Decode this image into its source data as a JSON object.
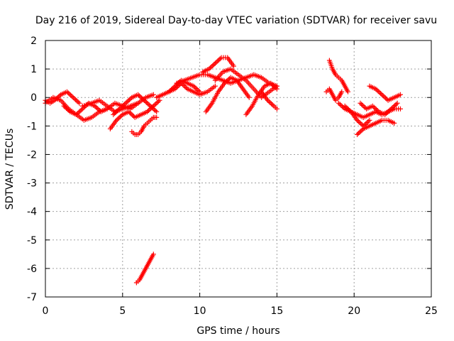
{
  "chart_data": {
    "type": "scatter",
    "title": "Day 216 of 2019, Sidereal Day-to-day VTEC variation (SDTVAR) for receiver savu",
    "xlabel": "GPS time / hours",
    "ylabel": "SDTVAR / TECUs",
    "xlim": [
      0,
      25
    ],
    "ylim": [
      -7,
      2
    ],
    "xticks": [
      0,
      5,
      10,
      15,
      20,
      25
    ],
    "yticks": [
      -7,
      -6,
      -5,
      -4,
      -3,
      -2,
      -1,
      0,
      1,
      2
    ],
    "grid": true,
    "marker": "+",
    "color": "#ff0000",
    "segments": [
      {
        "x": [
          0.0,
          0.3,
          0.6,
          1.0,
          1.4,
          1.8,
          2.2
        ],
        "y": [
          -0.1,
          -0.2,
          -0.1,
          0.1,
          0.2,
          0.0,
          -0.2
        ]
      },
      {
        "x": [
          0.0,
          0.5,
          1.0,
          1.5,
          2.0,
          2.5,
          3.0,
          3.5,
          4.0
        ],
        "y": [
          -0.2,
          0.0,
          -0.1,
          -0.4,
          -0.6,
          -0.8,
          -0.7,
          -0.5,
          -0.4
        ]
      },
      {
        "x": [
          1.2,
          1.6,
          2.0,
          2.4,
          2.8,
          3.2,
          3.6,
          4.0,
          4.5,
          5.0,
          5.5,
          6.0
        ],
        "y": [
          -0.3,
          -0.5,
          -0.6,
          -0.4,
          -0.2,
          -0.3,
          -0.5,
          -0.4,
          -0.2,
          -0.3,
          -0.4,
          -0.2
        ]
      },
      {
        "x": [
          2.4,
          3.0,
          3.5,
          4.0,
          4.5,
          5.0,
          5.5,
          6.0,
          6.5,
          7.0
        ],
        "y": [
          -0.3,
          -0.2,
          -0.1,
          -0.3,
          -0.5,
          -0.4,
          -0.3,
          -0.2,
          0.0,
          0.1
        ]
      },
      {
        "x": [
          4.2,
          4.6,
          5.0,
          5.4,
          5.8,
          6.2,
          6.6,
          7.0,
          7.4
        ],
        "y": [
          -1.1,
          -0.8,
          -0.6,
          -0.5,
          -0.7,
          -0.6,
          -0.5,
          -0.3,
          -0.1
        ]
      },
      {
        "x": [
          4.4,
          4.8,
          5.2,
          5.6,
          6.0,
          6.4,
          6.8,
          7.2
        ],
        "y": [
          -0.6,
          -0.4,
          -0.2,
          0.0,
          0.1,
          -0.1,
          -0.3,
          -0.5
        ]
      },
      {
        "x": [
          5.6,
          5.8,
          6.0,
          6.2,
          6.4,
          6.6,
          6.8,
          7.0,
          7.2
        ],
        "y": [
          -1.2,
          -1.3,
          -1.3,
          -1.2,
          -1.0,
          -0.9,
          -0.8,
          -0.7,
          -0.7
        ]
      },
      {
        "x": [
          5.9,
          6.1,
          6.3,
          6.5,
          6.7,
          6.9,
          7.0
        ],
        "y": [
          -6.5,
          -6.4,
          -6.2,
          -6.0,
          -5.8,
          -5.6,
          -5.5
        ]
      },
      {
        "x": [
          7.2,
          7.6,
          8.0,
          8.4,
          8.8,
          9.2,
          9.6,
          10.0
        ],
        "y": [
          0.0,
          0.1,
          0.2,
          0.4,
          0.6,
          0.5,
          0.4,
          0.2
        ]
      },
      {
        "x": [
          8.0,
          8.4,
          8.8,
          9.2,
          9.6,
          10.0,
          10.5,
          11.0
        ],
        "y": [
          0.2,
          0.3,
          0.5,
          0.3,
          0.2,
          0.1,
          0.2,
          0.4
        ]
      },
      {
        "x": [
          8.5,
          9.0,
          9.5,
          10.0,
          10.5,
          11.0,
          11.5,
          12.0,
          12.5,
          13.0,
          13.5,
          14.0,
          14.5,
          15.0
        ],
        "y": [
          0.5,
          0.6,
          0.7,
          0.8,
          0.8,
          0.7,
          0.6,
          0.5,
          0.6,
          0.7,
          0.8,
          0.7,
          0.5,
          0.4
        ]
      },
      {
        "x": [
          10.2,
          10.6,
          11.0,
          11.4,
          11.8,
          12.2
        ],
        "y": [
          0.9,
          1.0,
          1.2,
          1.4,
          1.4,
          1.1
        ]
      },
      {
        "x": [
          10.4,
          10.8,
          11.2,
          11.6,
          12.0,
          12.4,
          12.8,
          13.2
        ],
        "y": [
          -0.5,
          -0.2,
          0.2,
          0.5,
          0.7,
          0.6,
          0.3,
          0.0
        ]
      },
      {
        "x": [
          11.0,
          11.5,
          12.0,
          12.5,
          13.0,
          13.5,
          14.0,
          14.5,
          15.0
        ],
        "y": [
          0.6,
          0.9,
          1.0,
          0.8,
          0.6,
          0.3,
          0.0,
          0.2,
          0.4
        ]
      },
      {
        "x": [
          13.0,
          13.4,
          13.8,
          14.2,
          14.6,
          15.0
        ],
        "y": [
          -0.6,
          -0.3,
          0.1,
          0.4,
          0.5,
          0.3
        ]
      },
      {
        "x": [
          14.0,
          14.4,
          14.8,
          15.0
        ],
        "y": [
          0.2,
          -0.1,
          -0.3,
          -0.4
        ]
      },
      {
        "x": [
          18.2,
          18.4,
          18.6,
          18.8,
          19.0,
          19.2
        ],
        "y": [
          0.2,
          0.3,
          0.1,
          -0.1,
          0.0,
          0.2
        ]
      },
      {
        "x": [
          18.4,
          18.6,
          18.8,
          19.0,
          19.2,
          19.4,
          19.6
        ],
        "y": [
          1.3,
          1.0,
          0.8,
          0.7,
          0.6,
          0.4,
          0.2
        ]
      },
      {
        "x": [
          19.0,
          19.4,
          19.8,
          20.2,
          20.6,
          21.0
        ],
        "y": [
          -0.2,
          -0.4,
          -0.5,
          -0.8,
          -1.0,
          -0.8
        ]
      },
      {
        "x": [
          19.4,
          19.8,
          20.2,
          20.6,
          21.0,
          21.4,
          21.8,
          22.2,
          22.6,
          23.0
        ],
        "y": [
          -0.3,
          -0.5,
          -0.6,
          -0.7,
          -0.6,
          -0.5,
          -0.6,
          -0.5,
          -0.4,
          -0.4
        ]
      },
      {
        "x": [
          20.2,
          20.6,
          21.0,
          21.4,
          21.8,
          22.2,
          22.6
        ],
        "y": [
          -1.3,
          -1.1,
          -1.0,
          -0.9,
          -0.8,
          -0.8,
          -0.9
        ]
      },
      {
        "x": [
          20.4,
          20.8,
          21.2,
          21.6,
          22.0,
          22.4,
          22.8
        ],
        "y": [
          -0.2,
          -0.4,
          -0.3,
          -0.5,
          -0.6,
          -0.4,
          -0.2
        ]
      },
      {
        "x": [
          21.0,
          21.4,
          21.8,
          22.2,
          22.6,
          23.0
        ],
        "y": [
          0.4,
          0.3,
          0.1,
          -0.1,
          0.0,
          0.1
        ]
      }
    ]
  }
}
